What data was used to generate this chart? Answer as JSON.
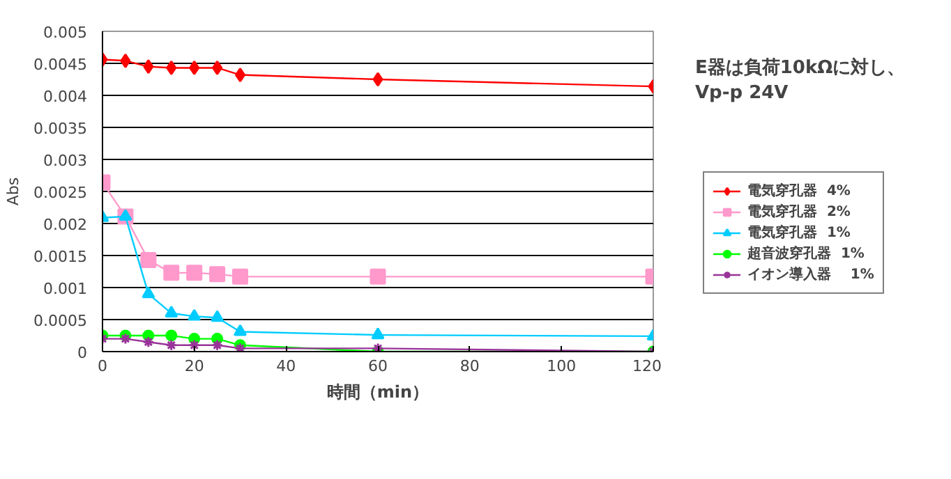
{
  "chart_data": {
    "type": "line",
    "xlabel": "時間（min）",
    "ylabel": "Abs",
    "annotations": [
      "E器は負荷10kΩに対し、\nVp-p  24V"
    ],
    "x": [
      0,
      5,
      10,
      15,
      20,
      25,
      30,
      60,
      120
    ],
    "series": [
      {
        "name": "電気穿孔器  4%",
        "color": "#ff0000",
        "marker": "diamond",
        "values": [
          0.00456,
          0.00454,
          0.00445,
          0.00443,
          0.00443,
          0.00443,
          0.00432,
          0.00425,
          0.00414
        ]
      },
      {
        "name": "電気穿孔器  2%",
        "color": "#ff99cc",
        "marker": "square",
        "values": [
          0.00264,
          0.00211,
          0.00143,
          0.00123,
          0.00123,
          0.00121,
          0.00117,
          0.00117,
          0.00117
        ]
      },
      {
        "name": "電気穿孔器  1%",
        "color": "#00ccff",
        "marker": "triangle",
        "values": [
          0.00209,
          0.00211,
          0.0009,
          0.0006,
          0.00055,
          0.00053,
          0.00031,
          0.00026,
          0.00024
        ]
      },
      {
        "name": "超音波穿孔器  1%",
        "color": "#00ff00",
        "marker": "circle",
        "values": [
          0.00025,
          0.00025,
          0.00025,
          0.00025,
          0.0002,
          0.0002,
          0.0001,
          0,
          0
        ]
      },
      {
        "name": "イオン導入器    1%",
        "color": "#993399",
        "marker": "cross",
        "values": [
          0.0002,
          0.0002,
          0.00015,
          0.0001,
          0.0001,
          0.0001,
          5e-05,
          5e-05,
          0
        ]
      }
    ],
    "xlim": [
      0,
      120
    ],
    "xticks": [
      0,
      20,
      40,
      60,
      80,
      100,
      120
    ],
    "ylim": [
      0,
      0.005
    ],
    "yticks": [
      0,
      0.0005,
      0.001,
      0.0015,
      0.002,
      0.0025,
      0.003,
      0.0035,
      0.004,
      0.0045,
      0.005
    ],
    "grid": "y",
    "legend": "right",
    "line_style": "solid"
  }
}
